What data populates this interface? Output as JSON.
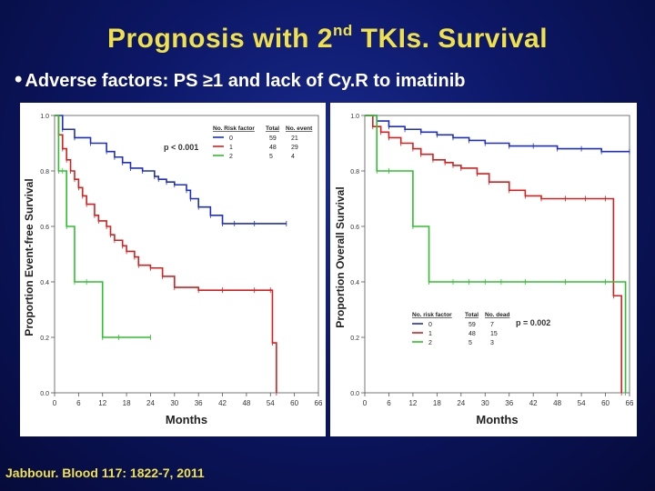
{
  "slide": {
    "title_main": "Prognosis with 2",
    "title_sup": "nd",
    "title_rest": " TKIs. Survival",
    "bullet": "Adverse factors: PS ≥1 and lack of Cy.R to imatinib",
    "citation": "Jabbour. Blood 117: 1822-7, 2011"
  },
  "colors": {
    "risk0": "#1f2fbf",
    "risk1": "#d42020",
    "risk2": "#2ec02e"
  },
  "chart_data": [
    {
      "type": "line",
      "ylabel": "Proportion Event-free Survival",
      "xlabel": "Months",
      "xlim": [
        0,
        66
      ],
      "ylim": [
        0,
        1
      ],
      "xticks": [
        "0",
        "6",
        "12",
        "18",
        "24",
        "30",
        "36",
        "42",
        "48",
        "54",
        "60",
        "66"
      ],
      "yticks": [
        "0.0",
        "0.2",
        "0.4",
        "0.6",
        "0.8",
        "1.0"
      ],
      "pvalue": "p < 0.001",
      "legend": {
        "headers": [
          "No. Risk factor",
          "Total",
          "No. event"
        ],
        "rows": [
          [
            "0",
            "59",
            "21"
          ],
          [
            "1",
            "48",
            "29"
          ],
          [
            "2",
            "5",
            "4"
          ]
        ]
      },
      "series": [
        {
          "name": "0",
          "x": [
            0,
            2,
            5,
            9,
            13,
            15,
            17,
            19,
            22,
            25,
            26,
            28,
            30,
            33,
            34,
            36,
            39,
            42,
            45,
            50,
            58
          ],
          "y": [
            1.0,
            0.95,
            0.92,
            0.9,
            0.87,
            0.85,
            0.83,
            0.81,
            0.8,
            0.78,
            0.77,
            0.76,
            0.75,
            0.73,
            0.7,
            0.67,
            0.64,
            0.61,
            0.61,
            0.61,
            0.61
          ]
        },
        {
          "name": "1",
          "x": [
            0,
            1,
            2,
            3,
            4,
            5,
            6,
            7,
            8,
            10,
            11,
            13,
            14,
            15,
            17,
            18,
            20,
            21,
            24,
            27,
            30,
            36,
            42,
            50,
            54,
            54.5,
            55.5
          ],
          "y": [
            1.0,
            0.93,
            0.88,
            0.84,
            0.8,
            0.77,
            0.74,
            0.71,
            0.68,
            0.64,
            0.62,
            0.6,
            0.57,
            0.55,
            0.53,
            0.51,
            0.49,
            0.46,
            0.45,
            0.42,
            0.38,
            0.37,
            0.37,
            0.37,
            0.37,
            0.18,
            0.0
          ]
        },
        {
          "name": "2",
          "x": [
            0,
            1,
            2,
            3,
            5,
            8,
            12,
            16,
            24
          ],
          "y": [
            1.0,
            0.8,
            0.8,
            0.6,
            0.4,
            0.4,
            0.2,
            0.2,
            0.2
          ]
        }
      ]
    },
    {
      "type": "line",
      "ylabel": "Proportion Overall Survival",
      "xlabel": "Months",
      "xlim": [
        0,
        66
      ],
      "ylim": [
        0,
        1
      ],
      "xticks": [
        "0",
        "6",
        "12",
        "18",
        "24",
        "30",
        "36",
        "42",
        "48",
        "54",
        "60",
        "66"
      ],
      "yticks": [
        "0.0",
        "0.2",
        "0.4",
        "0.6",
        "0.8",
        "1.0"
      ],
      "pvalue": "p = 0.002",
      "legend": {
        "headers": [
          "No. risk factor",
          "Total",
          "No. dead"
        ],
        "rows": [
          [
            "0",
            "59",
            "7"
          ],
          [
            "1",
            "48",
            "15"
          ],
          [
            "2",
            "5",
            "3"
          ]
        ]
      },
      "series": [
        {
          "name": "0",
          "x": [
            0,
            3,
            6,
            10,
            14,
            18,
            22,
            26,
            30,
            36,
            42,
            48,
            54,
            59,
            66
          ],
          "y": [
            1.0,
            0.98,
            0.96,
            0.95,
            0.94,
            0.93,
            0.92,
            0.91,
            0.9,
            0.89,
            0.89,
            0.88,
            0.88,
            0.87,
            0.87
          ]
        },
        {
          "name": "1",
          "x": [
            0,
            2,
            4,
            6,
            9,
            12,
            14,
            17,
            20,
            22,
            24,
            28,
            31,
            36,
            40,
            44,
            50,
            55,
            60,
            62,
            64
          ],
          "y": [
            1.0,
            0.96,
            0.94,
            0.92,
            0.9,
            0.88,
            0.86,
            0.84,
            0.83,
            0.82,
            0.81,
            0.79,
            0.76,
            0.73,
            0.71,
            0.7,
            0.7,
            0.7,
            0.7,
            0.35,
            0.0
          ]
        },
        {
          "name": "2",
          "x": [
            0,
            3,
            6,
            12,
            16,
            22,
            26,
            30,
            34,
            40,
            50,
            60,
            65
          ],
          "y": [
            1.0,
            0.8,
            0.8,
            0.6,
            0.4,
            0.4,
            0.4,
            0.4,
            0.4,
            0.4,
            0.4,
            0.4,
            0.0
          ]
        }
      ]
    }
  ]
}
